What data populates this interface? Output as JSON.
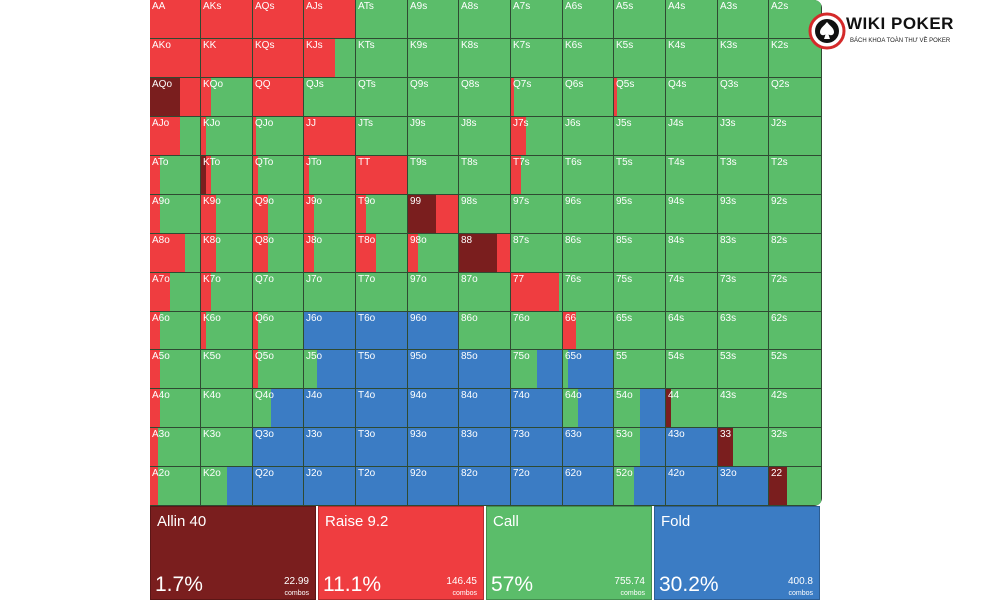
{
  "brand": {
    "name": "WIKI POKER",
    "tagline": "BÁCH KHOA TOÀN THƯ VỀ POKER"
  },
  "colors": {
    "allin": "#7a1e1e",
    "raise": "#ef3d40",
    "call": "#5bbd6a",
    "fold": "#3b7cc4"
  },
  "hands": [
    [
      "AA",
      "AKs",
      "AQs",
      "AJs",
      "ATs",
      "A9s",
      "A8s",
      "A7s",
      "A6s",
      "A5s",
      "A4s",
      "A3s",
      "A2s"
    ],
    [
      "AKo",
      "KK",
      "KQs",
      "KJs",
      "KTs",
      "K9s",
      "K8s",
      "K7s",
      "K6s",
      "K5s",
      "K4s",
      "K3s",
      "K2s"
    ],
    [
      "AQo",
      "KQo",
      "QQ",
      "QJs",
      "QTs",
      "Q9s",
      "Q8s",
      "Q7s",
      "Q6s",
      "Q5s",
      "Q4s",
      "Q3s",
      "Q2s"
    ],
    [
      "AJo",
      "KJo",
      "QJo",
      "JJ",
      "JTs",
      "J9s",
      "J8s",
      "J7s",
      "J6s",
      "J5s",
      "J4s",
      "J3s",
      "J2s"
    ],
    [
      "ATo",
      "KTo",
      "QTo",
      "JTo",
      "TT",
      "T9s",
      "T8s",
      "T7s",
      "T6s",
      "T5s",
      "T4s",
      "T3s",
      "T2s"
    ],
    [
      "A9o",
      "K9o",
      "Q9o",
      "J9o",
      "T9o",
      "99",
      "98s",
      "97s",
      "96s",
      "95s",
      "94s",
      "93s",
      "92s"
    ],
    [
      "A8o",
      "K8o",
      "Q8o",
      "J8o",
      "T8o",
      "98o",
      "88",
      "87s",
      "86s",
      "85s",
      "84s",
      "83s",
      "82s"
    ],
    [
      "A7o",
      "K7o",
      "Q7o",
      "J7o",
      "T7o",
      "97o",
      "87o",
      "77",
      "76s",
      "75s",
      "74s",
      "73s",
      "72s"
    ],
    [
      "A6o",
      "K6o",
      "Q6o",
      "J6o",
      "T6o",
      "96o",
      "86o",
      "76o",
      "66",
      "65s",
      "64s",
      "63s",
      "62s"
    ],
    [
      "A5o",
      "K5o",
      "Q5o",
      "J5o",
      "T5o",
      "95o",
      "85o",
      "75o",
      "65o",
      "55",
      "54s",
      "53s",
      "52s"
    ],
    [
      "A4o",
      "K4o",
      "Q4o",
      "J4o",
      "T4o",
      "94o",
      "84o",
      "74o",
      "64o",
      "54o",
      "44",
      "43s",
      "42s"
    ],
    [
      "A3o",
      "K3o",
      "Q3o",
      "J3o",
      "T3o",
      "93o",
      "83o",
      "73o",
      "63o",
      "53o",
      "43o",
      "33",
      "32s"
    ],
    [
      "A2o",
      "K2o",
      "Q2o",
      "J2o",
      "T2o",
      "92o",
      "82o",
      "72o",
      "62o",
      "52o",
      "42o",
      "32o",
      "22"
    ]
  ],
  "strategy": [
    [
      [
        0,
        1,
        0,
        0
      ],
      [
        0,
        1,
        0,
        0
      ],
      [
        0,
        1,
        0,
        0
      ],
      [
        0,
        1,
        0,
        0
      ],
      [
        0,
        0,
        1,
        0
      ],
      [
        0,
        0,
        1,
        0
      ],
      [
        0,
        0,
        1,
        0
      ],
      [
        0,
        0,
        1,
        0
      ],
      [
        0,
        0,
        1,
        0
      ],
      [
        0,
        0,
        1,
        0
      ],
      [
        0,
        0,
        1,
        0
      ],
      [
        0,
        0,
        1,
        0
      ],
      [
        0,
        0,
        1,
        0
      ]
    ],
    [
      [
        0,
        1,
        0,
        0
      ],
      [
        0,
        1,
        0,
        0
      ],
      [
        0,
        1,
        0,
        0
      ],
      [
        0,
        0.6,
        0.4,
        0
      ],
      [
        0,
        0,
        1,
        0
      ],
      [
        0,
        0,
        1,
        0
      ],
      [
        0,
        0,
        1,
        0
      ],
      [
        0,
        0,
        1,
        0
      ],
      [
        0,
        0,
        1,
        0
      ],
      [
        0,
        0,
        1,
        0
      ],
      [
        0,
        0,
        1,
        0
      ],
      [
        0,
        0,
        1,
        0
      ],
      [
        0,
        0,
        1,
        0
      ]
    ],
    [
      [
        0.6,
        0.4,
        0,
        0
      ],
      [
        0,
        0.2,
        0.8,
        0
      ],
      [
        0,
        1,
        0,
        0
      ],
      [
        0,
        0,
        1,
        0
      ],
      [
        0,
        0,
        1,
        0
      ],
      [
        0,
        0,
        1,
        0
      ],
      [
        0,
        0,
        1,
        0
      ],
      [
        0,
        0.05,
        0.95,
        0
      ],
      [
        0,
        0,
        1,
        0
      ],
      [
        0,
        0.05,
        0.95,
        0
      ],
      [
        0,
        0,
        1,
        0
      ],
      [
        0,
        0,
        1,
        0
      ],
      [
        0,
        0,
        1,
        0
      ]
    ],
    [
      [
        0,
        0.6,
        0.4,
        0
      ],
      [
        0,
        0.1,
        0.9,
        0
      ],
      [
        0,
        0.05,
        0.95,
        0
      ],
      [
        0,
        1,
        0,
        0
      ],
      [
        0,
        0,
        1,
        0
      ],
      [
        0,
        0,
        1,
        0
      ],
      [
        0,
        0,
        1,
        0
      ],
      [
        0,
        0.3,
        0.7,
        0
      ],
      [
        0,
        0,
        1,
        0
      ],
      [
        0,
        0,
        1,
        0
      ],
      [
        0,
        0,
        1,
        0
      ],
      [
        0,
        0,
        1,
        0
      ],
      [
        0,
        0,
        1,
        0
      ]
    ],
    [
      [
        0,
        0.2,
        0.8,
        0
      ],
      [
        0.1,
        0.1,
        0.8,
        0
      ],
      [
        0,
        0.1,
        0.9,
        0
      ],
      [
        0,
        0.1,
        0.9,
        0
      ],
      [
        0,
        1,
        0,
        0
      ],
      [
        0,
        0,
        1,
        0
      ],
      [
        0,
        0,
        1,
        0
      ],
      [
        0,
        0.2,
        0.8,
        0
      ],
      [
        0,
        0,
        1,
        0
      ],
      [
        0,
        0,
        1,
        0
      ],
      [
        0,
        0,
        1,
        0
      ],
      [
        0,
        0,
        1,
        0
      ],
      [
        0,
        0,
        1,
        0
      ]
    ],
    [
      [
        0,
        0.2,
        0.8,
        0
      ],
      [
        0,
        0.3,
        0.7,
        0
      ],
      [
        0,
        0.3,
        0.7,
        0
      ],
      [
        0,
        0.2,
        0.8,
        0
      ],
      [
        0,
        0.2,
        0.8,
        0
      ],
      [
        0.55,
        0.45,
        0,
        0
      ],
      [
        0,
        0,
        1,
        0
      ],
      [
        0,
        0,
        1,
        0
      ],
      [
        0,
        0,
        1,
        0
      ],
      [
        0,
        0,
        1,
        0
      ],
      [
        0,
        0,
        1,
        0
      ],
      [
        0,
        0,
        1,
        0
      ],
      [
        0,
        0,
        1,
        0
      ]
    ],
    [
      [
        0,
        0.7,
        0.3,
        0
      ],
      [
        0,
        0.3,
        0.7,
        0
      ],
      [
        0,
        0.3,
        0.7,
        0
      ],
      [
        0,
        0.2,
        0.8,
        0
      ],
      [
        0,
        0.4,
        0.6,
        0
      ],
      [
        0,
        0.2,
        0.8,
        0
      ],
      [
        0.75,
        0.25,
        0,
        0
      ],
      [
        0,
        0,
        1,
        0
      ],
      [
        0,
        0,
        1,
        0
      ],
      [
        0,
        0,
        1,
        0
      ],
      [
        0,
        0,
        1,
        0
      ],
      [
        0,
        0,
        1,
        0
      ],
      [
        0,
        0,
        1,
        0
      ]
    ],
    [
      [
        0,
        0.4,
        0.6,
        0
      ],
      [
        0,
        0.2,
        0.8,
        0
      ],
      [
        0,
        0,
        1,
        0
      ],
      [
        0,
        0,
        1,
        0
      ],
      [
        0,
        0,
        1,
        0
      ],
      [
        0,
        0,
        1,
        0
      ],
      [
        0,
        0,
        1,
        0
      ],
      [
        0,
        0.95,
        0.05,
        0
      ],
      [
        0,
        0,
        1,
        0
      ],
      [
        0,
        0,
        1,
        0
      ],
      [
        0,
        0,
        1,
        0
      ],
      [
        0,
        0,
        1,
        0
      ],
      [
        0,
        0,
        1,
        0
      ]
    ],
    [
      [
        0,
        0.2,
        0.8,
        0
      ],
      [
        0,
        0.1,
        0.9,
        0
      ],
      [
        0,
        0.1,
        0.9,
        0
      ],
      [
        0,
        0,
        0,
        1
      ],
      [
        0,
        0,
        0,
        1
      ],
      [
        0,
        0,
        0,
        1
      ],
      [
        0,
        0,
        1,
        0
      ],
      [
        0,
        0,
        1,
        0
      ],
      [
        0,
        0.25,
        0.75,
        0
      ],
      [
        0,
        0,
        1,
        0
      ],
      [
        0,
        0,
        1,
        0
      ],
      [
        0,
        0,
        1,
        0
      ],
      [
        0,
        0,
        1,
        0
      ]
    ],
    [
      [
        0,
        0.2,
        0.8,
        0
      ],
      [
        0,
        0,
        1,
        0
      ],
      [
        0,
        0.1,
        0.9,
        0
      ],
      [
        0,
        0,
        0.25,
        0.75
      ],
      [
        0,
        0,
        0,
        1
      ],
      [
        0,
        0,
        0,
        1
      ],
      [
        0,
        0,
        0,
        1
      ],
      [
        0,
        0,
        0.5,
        0.5
      ],
      [
        0,
        0,
        0.1,
        0.9
      ],
      [
        0,
        0,
        1,
        0
      ],
      [
        0,
        0,
        1,
        0
      ],
      [
        0,
        0,
        1,
        0
      ],
      [
        0,
        0,
        1,
        0
      ]
    ],
    [
      [
        0,
        0.2,
        0.8,
        0
      ],
      [
        0,
        0,
        1,
        0
      ],
      [
        0,
        0,
        0.35,
        0.65
      ],
      [
        0,
        0,
        0,
        1
      ],
      [
        0,
        0,
        0,
        1
      ],
      [
        0,
        0,
        0,
        1
      ],
      [
        0,
        0,
        0,
        1
      ],
      [
        0,
        0,
        0,
        1
      ],
      [
        0,
        0,
        0.3,
        0.7
      ],
      [
        0,
        0,
        0.5,
        0.5
      ],
      [
        0.1,
        0,
        0.9,
        0
      ],
      [
        0,
        0,
        1,
        0
      ],
      [
        0,
        0,
        1,
        0
      ]
    ],
    [
      [
        0,
        0.15,
        0.85,
        0
      ],
      [
        0,
        0,
        1,
        0
      ],
      [
        0,
        0,
        0,
        1
      ],
      [
        0,
        0,
        0,
        1
      ],
      [
        0,
        0,
        0,
        1
      ],
      [
        0,
        0,
        0,
        1
      ],
      [
        0,
        0,
        0,
        1
      ],
      [
        0,
        0,
        0,
        1
      ],
      [
        0,
        0,
        0,
        1
      ],
      [
        0,
        0,
        0.5,
        0.5
      ],
      [
        0,
        0,
        0,
        1
      ],
      [
        0.3,
        0,
        0.7,
        0
      ],
      [
        0,
        0,
        1,
        0
      ]
    ],
    [
      [
        0,
        0.15,
        0.85,
        0
      ],
      [
        0,
        0,
        0.5,
        0.5
      ],
      [
        0,
        0,
        0,
        1
      ],
      [
        0,
        0,
        0,
        1
      ],
      [
        0,
        0,
        0,
        1
      ],
      [
        0,
        0,
        0,
        1
      ],
      [
        0,
        0,
        0,
        1
      ],
      [
        0,
        0,
        0,
        1
      ],
      [
        0,
        0,
        0,
        1
      ],
      [
        0,
        0,
        0.4,
        0.6
      ],
      [
        0,
        0,
        0,
        1
      ],
      [
        0,
        0,
        0,
        1
      ],
      [
        0.35,
        0,
        0.65,
        0
      ]
    ]
  ],
  "legend": [
    {
      "key": "allin",
      "name": "Allin 40",
      "pct": "1.7%",
      "combos": "22.99",
      "unit": "combos"
    },
    {
      "key": "raise",
      "name": "Raise 9.2",
      "pct": "11.1%",
      "combos": "146.45",
      "unit": "combos"
    },
    {
      "key": "call",
      "name": "Call",
      "pct": "57%",
      "combos": "755.74",
      "unit": "combos"
    },
    {
      "key": "fold",
      "name": "Fold",
      "pct": "30.2%",
      "combos": "400.8",
      "unit": "combos"
    }
  ]
}
